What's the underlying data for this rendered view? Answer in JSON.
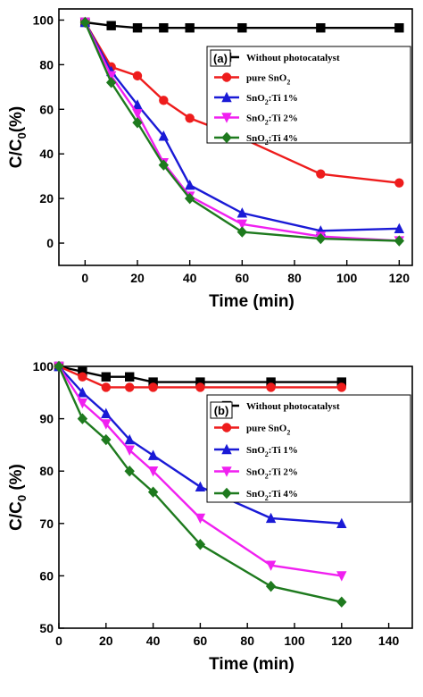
{
  "chart_data": [
    {
      "type": "line",
      "panel_label": "(a)",
      "xlabel": "Time (min)",
      "ylabel": "C/C0(%)",
      "ylabel_parts": [
        "C/C",
        "0",
        "(%)"
      ],
      "xlim": [
        -10,
        125
      ],
      "ylim": [
        -10,
        105
      ],
      "xticks": [
        0,
        20,
        40,
        60,
        80,
        100,
        120
      ],
      "yticks": [
        0,
        20,
        40,
        60,
        80,
        100
      ],
      "legend_position": "top-right",
      "series": [
        {
          "name": "Without photocatalyst",
          "color": "#000000",
          "marker": "square",
          "x": [
            0,
            10,
            20,
            30,
            40,
            60,
            90,
            120
          ],
          "y": [
            99,
            97.5,
            96.5,
            96.5,
            96.5,
            96.5,
            96.5,
            96.5
          ]
        },
        {
          "name": "pure SnO2",
          "color": "#ee1c1c",
          "marker": "circle",
          "x": [
            0,
            10,
            20,
            30,
            40,
            60,
            90,
            120
          ],
          "y": [
            99,
            79,
            75,
            64,
            56,
            47,
            31,
            27
          ]
        },
        {
          "name": "SnO2:Ti 1%",
          "color": "#1a1ad6",
          "marker": "triangle-up",
          "x": [
            0,
            10,
            20,
            30,
            40,
            60,
            90,
            120
          ],
          "y": [
            99,
            77,
            62,
            48,
            26,
            13.5,
            5.5,
            6.5
          ]
        },
        {
          "name": "SnO2:Ti 2%",
          "color": "#f020f0",
          "marker": "triangle-down",
          "x": [
            0,
            10,
            20,
            30,
            40,
            60,
            90,
            120
          ],
          "y": [
            99,
            75,
            58,
            36,
            21,
            8.5,
            3,
            1
          ]
        },
        {
          "name": "SnO2:Ti 4%",
          "color": "#1e7a1e",
          "marker": "diamond",
          "x": [
            0,
            10,
            20,
            30,
            40,
            60,
            90,
            120
          ],
          "y": [
            99,
            72,
            54,
            35,
            20,
            5,
            2,
            1
          ]
        }
      ]
    },
    {
      "type": "line",
      "panel_label": "(b)",
      "xlabel": "Time (min)",
      "ylabel": "C/C0 (%)",
      "ylabel_parts": [
        "C/C",
        "0",
        " (%)"
      ],
      "xlim": [
        0,
        150
      ],
      "ylim": [
        50,
        100
      ],
      "xticks": [
        0,
        20,
        40,
        60,
        80,
        100,
        120,
        140
      ],
      "yticks": [
        50,
        60,
        70,
        80,
        90,
        100
      ],
      "legend_position": "right",
      "series": [
        {
          "name": "Without photocatalyst",
          "color": "#000000",
          "marker": "square",
          "x": [
            0,
            10,
            20,
            30,
            40,
            60,
            90,
            120
          ],
          "y": [
            100,
            99,
            98,
            98,
            97,
            97,
            97,
            97
          ]
        },
        {
          "name": "pure SnO2",
          "color": "#ee1c1c",
          "marker": "circle",
          "x": [
            0,
            10,
            20,
            30,
            40,
            60,
            90,
            120
          ],
          "y": [
            100,
            98,
            96,
            96,
            96,
            96,
            96,
            96
          ]
        },
        {
          "name": "SnO2:Ti 1%",
          "color": "#1a1ad6",
          "marker": "triangle-up",
          "x": [
            0,
            10,
            20,
            30,
            40,
            60,
            90,
            120
          ],
          "y": [
            100,
            95,
            91,
            86,
            83,
            77,
            71,
            70
          ]
        },
        {
          "name": "SnO2:Ti 2%",
          "color": "#f020f0",
          "marker": "triangle-down",
          "x": [
            0,
            10,
            20,
            30,
            40,
            60,
            90,
            120
          ],
          "y": [
            100,
            93,
            89,
            84,
            80,
            71,
            62,
            60
          ]
        },
        {
          "name": "SnO2:Ti 4%",
          "color": "#1e7a1e",
          "marker": "diamond",
          "x": [
            0,
            10,
            20,
            30,
            40,
            60,
            90,
            120
          ],
          "y": [
            100,
            90,
            86,
            80,
            76,
            66,
            58,
            55
          ]
        }
      ]
    }
  ]
}
